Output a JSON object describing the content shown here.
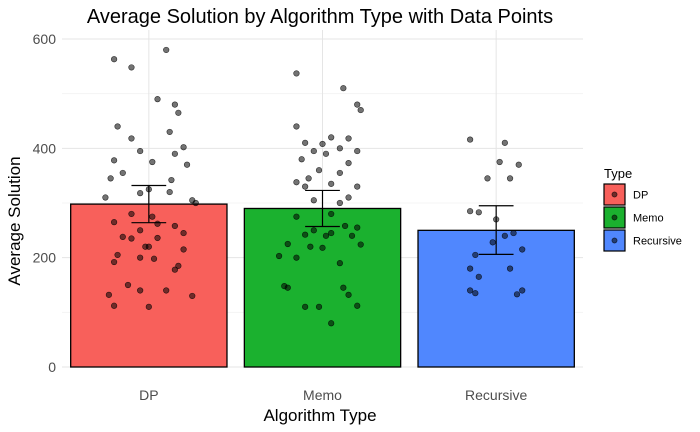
{
  "chart_data": {
    "type": "bar",
    "title": "Average Solution by Algorithm Type with Data Points",
    "xlabel": "Algorithm Type",
    "ylabel": "Average Solution",
    "categories": [
      "DP",
      "Memo",
      "Recursive"
    ],
    "values": [
      298,
      290,
      250
    ],
    "error_bars": [
      {
        "category": "DP",
        "low": 264,
        "high": 332
      },
      {
        "category": "Memo",
        "low": 257,
        "high": 323
      },
      {
        "category": "Recursive",
        "low": 206,
        "high": 295
      }
    ],
    "ylim": [
      0,
      620
    ],
    "yticks": [
      0,
      200,
      400,
      600
    ],
    "grid": true,
    "colors": {
      "DP": "#f8605b",
      "Memo": "#1bb12f",
      "Recursive": "#5087fe"
    },
    "legend": {
      "title": "Type",
      "position": "right",
      "entries": [
        "DP",
        "Memo",
        "Recursive"
      ]
    },
    "points": {
      "DP": [
        {
          "x": -0.2,
          "y": 563
        },
        {
          "x": -0.1,
          "y": 548
        },
        {
          "x": 0.1,
          "y": 580
        },
        {
          "x": 0.05,
          "y": 490
        },
        {
          "x": 0.15,
          "y": 480
        },
        {
          "x": 0.17,
          "y": 465
        },
        {
          "x": -0.18,
          "y": 440
        },
        {
          "x": 0.12,
          "y": 430
        },
        {
          "x": -0.1,
          "y": 418
        },
        {
          "x": 0.2,
          "y": 402
        },
        {
          "x": -0.05,
          "y": 395
        },
        {
          "x": 0.15,
          "y": 390
        },
        {
          "x": -0.2,
          "y": 378
        },
        {
          "x": 0.02,
          "y": 375
        },
        {
          "x": 0.22,
          "y": 370
        },
        {
          "x": -0.15,
          "y": 355
        },
        {
          "x": -0.22,
          "y": 345
        },
        {
          "x": 0.13,
          "y": 342
        },
        {
          "x": 0.0,
          "y": 325
        },
        {
          "x": -0.05,
          "y": 318
        },
        {
          "x": 0.12,
          "y": 320
        },
        {
          "x": -0.25,
          "y": 310
        },
        {
          "x": 0.25,
          "y": 305
        },
        {
          "x": 0.27,
          "y": 300
        },
        {
          "x": -0.1,
          "y": 280
        },
        {
          "x": 0.02,
          "y": 275
        },
        {
          "x": -0.2,
          "y": 265
        },
        {
          "x": 0.05,
          "y": 262
        },
        {
          "x": 0.15,
          "y": 258
        },
        {
          "x": -0.05,
          "y": 250
        },
        {
          "x": 0.2,
          "y": 245
        },
        {
          "x": -0.15,
          "y": 238
        },
        {
          "x": 0.05,
          "y": 236
        },
        {
          "x": -0.1,
          "y": 235
        },
        {
          "x": -0.02,
          "y": 220
        },
        {
          "x": 0.0,
          "y": 220
        },
        {
          "x": 0.2,
          "y": 215
        },
        {
          "x": -0.18,
          "y": 205
        },
        {
          "x": -0.05,
          "y": 200
        },
        {
          "x": 0.03,
          "y": 198
        },
        {
          "x": -0.2,
          "y": 192
        },
        {
          "x": 0.17,
          "y": 185
        },
        {
          "x": 0.15,
          "y": 178
        },
        {
          "x": -0.12,
          "y": 150
        },
        {
          "x": -0.05,
          "y": 140
        },
        {
          "x": 0.1,
          "y": 140
        },
        {
          "x": 0.25,
          "y": 130
        },
        {
          "x": -0.23,
          "y": 132
        },
        {
          "x": -0.2,
          "y": 112
        },
        {
          "x": 0.0,
          "y": 110
        }
      ],
      "Memo": [
        {
          "x": -0.15,
          "y": 537
        },
        {
          "x": 0.12,
          "y": 510
        },
        {
          "x": 0.2,
          "y": 480
        },
        {
          "x": 0.22,
          "y": 470
        },
        {
          "x": -0.15,
          "y": 440
        },
        {
          "x": 0.05,
          "y": 420
        },
        {
          "x": 0.15,
          "y": 418
        },
        {
          "x": -0.1,
          "y": 410
        },
        {
          "x": 0.0,
          "y": 408
        },
        {
          "x": 0.1,
          "y": 400
        },
        {
          "x": -0.05,
          "y": 395
        },
        {
          "x": 0.2,
          "y": 395
        },
        {
          "x": 0.02,
          "y": 390
        },
        {
          "x": -0.12,
          "y": 380
        },
        {
          "x": 0.15,
          "y": 373
        },
        {
          "x": -0.02,
          "y": 360
        },
        {
          "x": 0.1,
          "y": 355
        },
        {
          "x": -0.08,
          "y": 345
        },
        {
          "x": -0.15,
          "y": 338
        },
        {
          "x": 0.05,
          "y": 335
        },
        {
          "x": -0.1,
          "y": 330
        },
        {
          "x": 0.2,
          "y": 330
        },
        {
          "x": 0.15,
          "y": 310
        },
        {
          "x": -0.05,
          "y": 305
        },
        {
          "x": 0.1,
          "y": 300
        },
        {
          "x": 0.05,
          "y": 280
        },
        {
          "x": -0.15,
          "y": 275
        },
        {
          "x": 0.13,
          "y": 258
        },
        {
          "x": 0.2,
          "y": 255
        },
        {
          "x": -0.05,
          "y": 250
        },
        {
          "x": -0.1,
          "y": 242
        },
        {
          "x": 0.02,
          "y": 240
        },
        {
          "x": 0.05,
          "y": 245
        },
        {
          "x": 0.17,
          "y": 240
        },
        {
          "x": -0.2,
          "y": 225
        },
        {
          "x": 0.22,
          "y": 224
        },
        {
          "x": -0.07,
          "y": 220
        },
        {
          "x": 0.0,
          "y": 218
        },
        {
          "x": -0.25,
          "y": 203
        },
        {
          "x": -0.15,
          "y": 200
        },
        {
          "x": 0.1,
          "y": 190
        },
        {
          "x": -0.22,
          "y": 148
        },
        {
          "x": -0.2,
          "y": 145
        },
        {
          "x": 0.12,
          "y": 145
        },
        {
          "x": 0.15,
          "y": 132
        },
        {
          "x": -0.1,
          "y": 110
        },
        {
          "x": -0.02,
          "y": 110
        },
        {
          "x": 0.2,
          "y": 112
        },
        {
          "x": 0.05,
          "y": 80
        }
      ],
      "Recursive": [
        {
          "x": -0.15,
          "y": 416
        },
        {
          "x": 0.05,
          "y": 410
        },
        {
          "x": 0.02,
          "y": 375
        },
        {
          "x": 0.13,
          "y": 370
        },
        {
          "x": -0.05,
          "y": 345
        },
        {
          "x": 0.08,
          "y": 345
        },
        {
          "x": -0.15,
          "y": 285
        },
        {
          "x": -0.1,
          "y": 283
        },
        {
          "x": 0.0,
          "y": 270
        },
        {
          "x": 0.1,
          "y": 245
        },
        {
          "x": 0.05,
          "y": 240
        },
        {
          "x": -0.02,
          "y": 228
        },
        {
          "x": 0.15,
          "y": 215
        },
        {
          "x": -0.12,
          "y": 205
        },
        {
          "x": -0.15,
          "y": 180
        },
        {
          "x": 0.08,
          "y": 180
        },
        {
          "x": -0.1,
          "y": 165
        },
        {
          "x": 0.15,
          "y": 140
        },
        {
          "x": -0.15,
          "y": 140
        },
        {
          "x": -0.12,
          "y": 135
        },
        {
          "x": 0.12,
          "y": 133
        }
      ]
    }
  }
}
